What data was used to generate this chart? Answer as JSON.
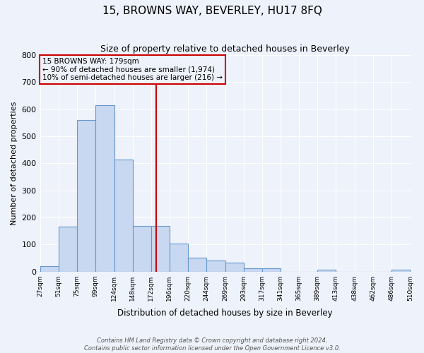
{
  "title": "15, BROWNS WAY, BEVERLEY, HU17 8FQ",
  "subtitle": "Size of property relative to detached houses in Beverley",
  "xlabel": "Distribution of detached houses by size in Beverley",
  "ylabel": "Number of detached properties",
  "footer_lines": [
    "Contains HM Land Registry data © Crown copyright and database right 2024.",
    "Contains public sector information licensed under the Open Government Licence v3.0."
  ],
  "bin_edges": [
    27,
    51,
    75,
    99,
    124,
    148,
    172,
    196,
    220,
    244,
    269,
    293,
    317,
    341,
    365,
    389,
    413,
    438,
    462,
    486,
    510
  ],
  "bin_labels": [
    "27sqm",
    "51sqm",
    "75sqm",
    "99sqm",
    "124sqm",
    "148sqm",
    "172sqm",
    "196sqm",
    "220sqm",
    "244sqm",
    "269sqm",
    "293sqm",
    "317sqm",
    "341sqm",
    "365sqm",
    "389sqm",
    "413sqm",
    "438sqm",
    "462sqm",
    "486sqm",
    "510sqm"
  ],
  "counts": [
    20,
    165,
    560,
    615,
    415,
    170,
    170,
    103,
    50,
    40,
    33,
    12,
    13,
    0,
    0,
    7,
    0,
    0,
    0,
    8
  ],
  "vline_x": 179,
  "vline_color": "#cc0000",
  "bar_facecolor": "#c8d8f0",
  "bar_edgecolor": "#6699cc",
  "annotation_line1": "15 BROWNS WAY: 179sqm",
  "annotation_line2": "← 90% of detached houses are smaller (1,974)",
  "annotation_line3": "10% of semi-detached houses are larger (216) →",
  "annotation_box_color": "#cc0000",
  "ylim": [
    0,
    800
  ],
  "yticks": [
    0,
    100,
    200,
    300,
    400,
    500,
    600,
    700,
    800
  ],
  "bg_color": "#eef2fa",
  "grid_color": "#ffffff",
  "title_fontsize": 11,
  "subtitle_fontsize": 9
}
